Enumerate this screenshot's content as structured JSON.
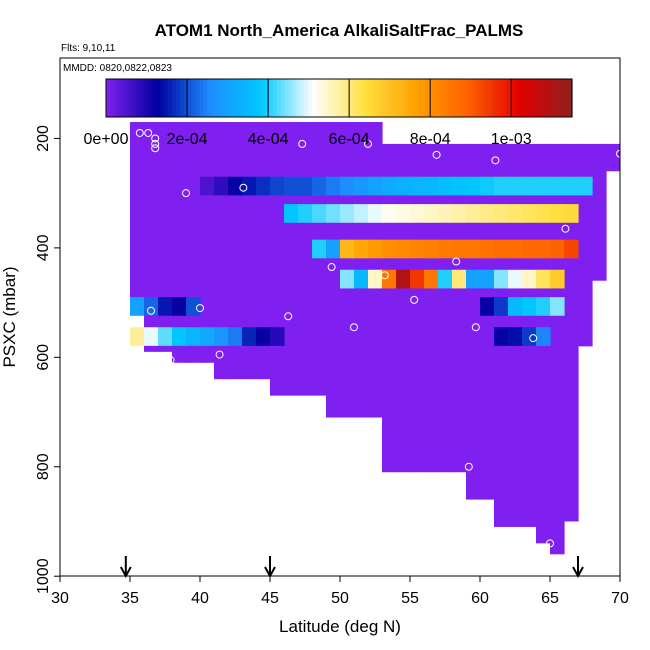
{
  "chart_data": {
    "type": "heatmap",
    "title": "ATOM1 North_America AlkaliSaltFrac_PALMS",
    "annotations": [
      "Flts: 9,10,11",
      "MMDD: 0820,0822,0823"
    ],
    "xlabel": "Latitude (deg N)",
    "ylabel": "PSXC (mbar)",
    "xlim": [
      30,
      70
    ],
    "ylim": [
      1000,
      0
    ],
    "x_ticks": [
      "30",
      "35",
      "40",
      "45",
      "50",
      "55",
      "60",
      "65",
      "70"
    ],
    "y_ticks": [
      "200",
      "400",
      "600",
      "800",
      "1000"
    ],
    "colorbar": {
      "ticks": [
        "0e+00",
        "2e-04",
        "4e-04",
        "6e-04",
        "8e-04",
        "1e-03"
      ],
      "range": [
        0,
        0.00115
      ],
      "colors": [
        "#8020f0",
        "#0000a0",
        "#1e8cff",
        "#00c8ff",
        "#ffffff",
        "#ffe040",
        "#ffa000",
        "#ff6000",
        "#e00000",
        "#902020"
      ]
    },
    "arrows_at_latitude": [
      34.7,
      45,
      67
    ],
    "cell_size": {
      "dlat": 1,
      "dp": 33
    },
    "background_value": 0,
    "coverage_columns": [
      [
        35,
        170,
        520
      ],
      [
        36,
        170,
        590
      ],
      [
        37,
        170,
        590
      ],
      [
        38,
        170,
        610
      ],
      [
        39,
        170,
        610
      ],
      [
        40,
        170,
        610
      ],
      [
        41,
        170,
        640
      ],
      [
        42,
        170,
        640
      ],
      [
        43,
        170,
        640
      ],
      [
        44,
        170,
        640
      ],
      [
        45,
        170,
        670
      ],
      [
        46,
        170,
        670
      ],
      [
        47,
        170,
        670
      ],
      [
        48,
        170,
        670
      ],
      [
        49,
        170,
        710
      ],
      [
        50,
        170,
        710
      ],
      [
        51,
        170,
        710
      ],
      [
        52,
        170,
        710
      ],
      [
        53,
        210,
        810
      ],
      [
        54,
        210,
        810
      ],
      [
        55,
        210,
        810
      ],
      [
        56,
        210,
        810
      ],
      [
        57,
        210,
        810
      ],
      [
        58,
        210,
        810
      ],
      [
        59,
        210,
        860
      ],
      [
        60,
        210,
        860
      ],
      [
        61,
        210,
        910
      ],
      [
        62,
        210,
        910
      ],
      [
        63,
        210,
        910
      ],
      [
        64,
        210,
        940
      ],
      [
        65,
        210,
        960
      ],
      [
        66,
        210,
        900
      ],
      [
        67,
        210,
        580
      ],
      [
        68,
        210,
        460
      ],
      [
        69,
        210,
        260
      ]
    ],
    "highlight_cells": [
      [
        40,
        270,
        5e-05
      ],
      [
        41,
        270,
        8e-05
      ],
      [
        42,
        270,
        0.00012
      ],
      [
        43,
        270,
        0.00015
      ],
      [
        44,
        270,
        0.00017
      ],
      [
        45,
        270,
        0.00019
      ],
      [
        46,
        270,
        0.0002
      ],
      [
        47,
        270,
        0.0002
      ],
      [
        48,
        270,
        0.00022
      ],
      [
        49,
        270,
        0.00024
      ],
      [
        50,
        270,
        0.00026
      ],
      [
        51,
        270,
        0.00028
      ],
      [
        52,
        270,
        0.0003
      ],
      [
        53,
        270,
        0.00032
      ],
      [
        54,
        270,
        0.00033
      ],
      [
        55,
        270,
        0.00034
      ],
      [
        56,
        270,
        0.00035
      ],
      [
        57,
        270,
        0.00036
      ],
      [
        58,
        270,
        0.00037
      ],
      [
        59,
        270,
        0.00038
      ],
      [
        60,
        270,
        0.00039
      ],
      [
        61,
        270,
        0.0004
      ],
      [
        62,
        270,
        0.0004
      ],
      [
        63,
        270,
        0.0004
      ],
      [
        64,
        270,
        0.0004
      ],
      [
        65,
        270,
        0.0004
      ],
      [
        66,
        270,
        0.0004
      ],
      [
        67,
        270,
        0.0004
      ],
      [
        46,
        320,
        0.00038
      ],
      [
        47,
        320,
        0.0004
      ],
      [
        48,
        320,
        0.00042
      ],
      [
        49,
        320,
        0.00044
      ],
      [
        50,
        320,
        0.00046
      ],
      [
        51,
        320,
        0.00048
      ],
      [
        52,
        320,
        0.0005
      ],
      [
        53,
        320,
        0.00052
      ],
      [
        54,
        320,
        0.00053
      ],
      [
        55,
        320,
        0.00054
      ],
      [
        56,
        320,
        0.00055
      ],
      [
        57,
        320,
        0.00056
      ],
      [
        58,
        320,
        0.00057
      ],
      [
        59,
        320,
        0.00058
      ],
      [
        60,
        320,
        0.00059
      ],
      [
        61,
        320,
        0.0006
      ],
      [
        62,
        320,
        0.00061
      ],
      [
        63,
        320,
        0.00062
      ],
      [
        64,
        320,
        0.00063
      ],
      [
        65,
        320,
        0.00064
      ],
      [
        66,
        320,
        0.00065
      ],
      [
        48,
        385,
        0.0004
      ],
      [
        49,
        385,
        0.0003
      ],
      [
        50,
        385,
        0.00072
      ],
      [
        51,
        385,
        0.00075
      ],
      [
        52,
        385,
        0.00078
      ],
      [
        53,
        385,
        0.0008
      ],
      [
        54,
        385,
        0.00081
      ],
      [
        55,
        385,
        0.00082
      ],
      [
        56,
        385,
        0.00083
      ],
      [
        57,
        385,
        0.00084
      ],
      [
        58,
        385,
        0.00085
      ],
      [
        59,
        385,
        0.00085
      ],
      [
        60,
        385,
        0.00086
      ],
      [
        61,
        385,
        0.00087
      ],
      [
        62,
        385,
        0.00087
      ],
      [
        63,
        385,
        0.00088
      ],
      [
        64,
        385,
        0.00088
      ],
      [
        65,
        385,
        0.00089
      ],
      [
        66,
        385,
        0.00093
      ],
      [
        50,
        440,
        0.00045
      ],
      [
        51,
        440,
        0.00035
      ],
      [
        52,
        440,
        0.00055
      ],
      [
        53,
        440,
        0.00085
      ],
      [
        54,
        440,
        0.0011
      ],
      [
        55,
        440,
        0.00095
      ],
      [
        56,
        440,
        0.00085
      ],
      [
        57,
        440,
        0.0004
      ],
      [
        58,
        440,
        0.0006
      ],
      [
        59,
        440,
        0.0003
      ],
      [
        60,
        440,
        0.0003
      ],
      [
        61,
        440,
        0.00045
      ],
      [
        62,
        440,
        0.0005
      ],
      [
        63,
        440,
        0.00055
      ],
      [
        64,
        440,
        0.00062
      ],
      [
        65,
        440,
        0.00068
      ],
      [
        60,
        490,
        0.00012
      ],
      [
        61,
        490,
        0.00018
      ],
      [
        62,
        490,
        0.00035
      ],
      [
        63,
        490,
        0.00038
      ],
      [
        64,
        490,
        0.0004
      ],
      [
        65,
        490,
        0.00045
      ],
      [
        35,
        490,
        0.0003
      ],
      [
        36,
        490,
        0.00022
      ],
      [
        37,
        490,
        0.00015
      ],
      [
        38,
        490,
        0.00012
      ],
      [
        39,
        490,
        0.0002
      ],
      [
        35,
        545,
        0.00058
      ],
      [
        36,
        545,
        0.0005
      ],
      [
        37,
        545,
        0.00043
      ],
      [
        38,
        545,
        0.00038
      ],
      [
        39,
        545,
        0.00034
      ],
      [
        40,
        545,
        0.00032
      ],
      [
        41,
        545,
        0.00028
      ],
      [
        42,
        545,
        0.00024
      ],
      [
        43,
        545,
        0.00016
      ],
      [
        44,
        545,
        0.00012
      ],
      [
        45,
        545,
        9e-05
      ],
      [
        61,
        545,
        0.00012
      ],
      [
        62,
        545,
        0.00014
      ],
      [
        63,
        545,
        0.00018
      ],
      [
        64,
        545,
        0.00025
      ]
    ],
    "observation_points": [
      [
        34.6,
        230
      ],
      [
        35.7,
        190
      ],
      [
        36.3,
        190
      ],
      [
        36.8,
        200
      ],
      [
        36.8,
        210
      ],
      [
        36.8,
        218
      ],
      [
        39.0,
        300
      ],
      [
        43.1,
        290
      ],
      [
        47.3,
        210
      ],
      [
        52.0,
        210
      ],
      [
        56.9,
        230
      ],
      [
        61.1,
        240
      ],
      [
        70.0,
        228
      ],
      [
        34.2,
        440
      ],
      [
        36.5,
        515
      ],
      [
        37.9,
        605
      ],
      [
        40.0,
        510
      ],
      [
        41.4,
        595
      ],
      [
        46.3,
        525
      ],
      [
        49.4,
        435
      ],
      [
        51.0,
        545
      ],
      [
        53.2,
        450
      ],
      [
        55.3,
        495
      ],
      [
        58.3,
        425
      ],
      [
        59.2,
        800
      ],
      [
        59.7,
        545
      ],
      [
        63.8,
        565
      ],
      [
        65.0,
        940
      ],
      [
        66.1,
        365
      ]
    ]
  }
}
